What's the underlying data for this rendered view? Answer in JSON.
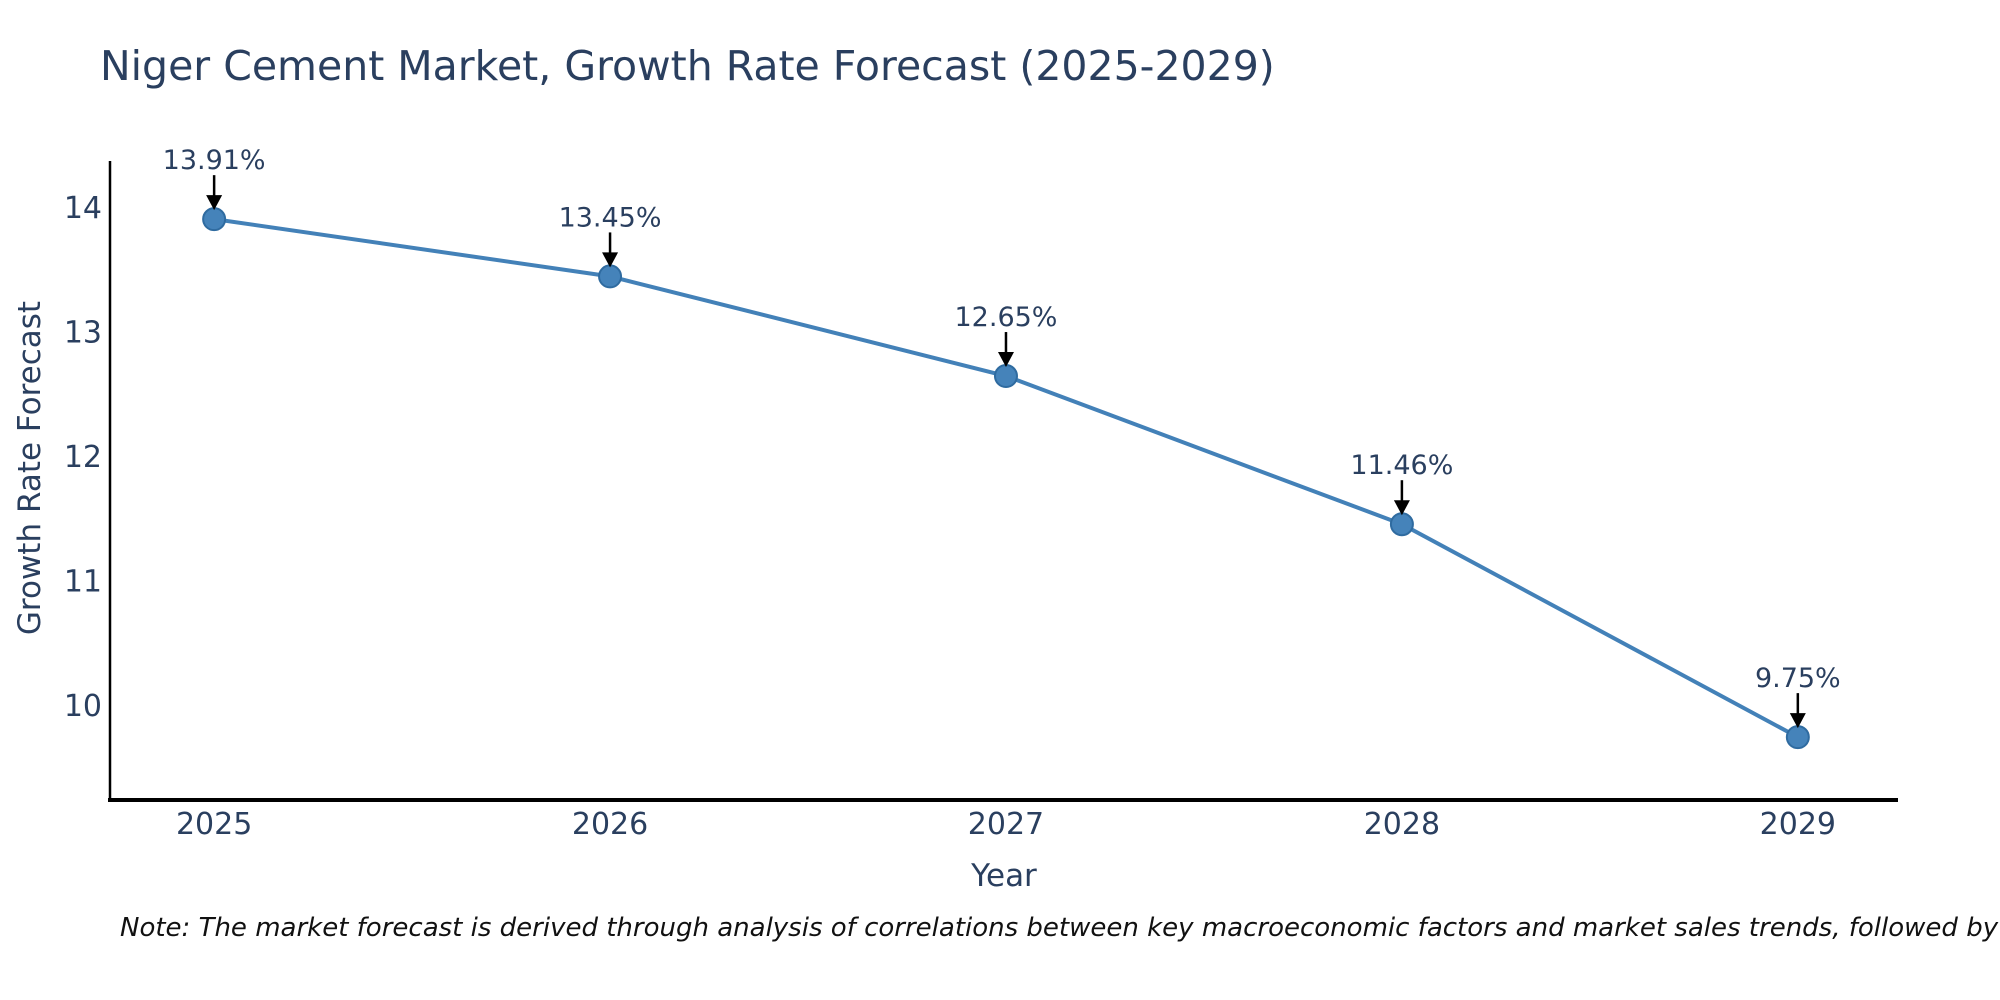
{
  "title": "Niger Cement Market, Growth Rate Forecast (2025-2029)",
  "note": "Note: The market forecast is derived through analysis of correlations between key macroeconomic factors and market sales trends, followed by predictive modeling to project future sales.",
  "chart_data": {
    "type": "line",
    "title": "Niger Cement Market, Growth Rate Forecast (2025-2029)",
    "xlabel": "Year",
    "ylabel": "Growth Rate Forecast",
    "x": [
      2025,
      2026,
      2027,
      2028,
      2029
    ],
    "series": [
      {
        "name": "Growth Rate Forecast",
        "values": [
          13.91,
          13.45,
          12.65,
          11.46,
          9.75
        ]
      }
    ],
    "point_labels": [
      "13.91%",
      "13.45%",
      "12.65%",
      "11.46%",
      "9.75%"
    ],
    "xticks": [
      2025,
      2026,
      2027,
      2028,
      2029
    ],
    "xtick_labels": [
      "2025",
      "2026",
      "2027",
      "2028",
      "2029"
    ],
    "yticks": [
      10,
      11,
      12,
      13,
      14
    ],
    "ytick_labels": [
      "10",
      "11",
      "12",
      "13",
      "14"
    ],
    "xlim": [
      2024.737,
      2029.253
    ],
    "ylim": [
      9.245,
      14.377
    ],
    "grid": false,
    "legend": "none",
    "annotation_style": "value-label-with-down-arrow",
    "colors": {
      "line": "#4381b8",
      "marker_fill": "#4583ba",
      "marker_edge": "#2f6ba0",
      "axis": "#000000",
      "arrow": "#000000",
      "tick_text": "#2a3f5f",
      "annotation_text": "#2a3f5f",
      "title_text": "#2a3f5f"
    }
  }
}
